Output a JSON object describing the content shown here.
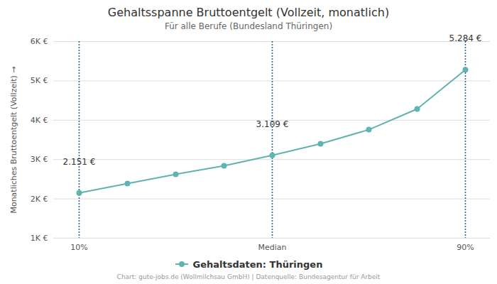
{
  "chart_data": {
    "type": "line",
    "title": "Gehaltsspanne Bruttoentgelt (Vollzeit, monatlich)",
    "subtitle": "Für alle Berufe (Bundesland Thüringen)",
    "ylabel": "Monatliches Bruttoentgelt (Vollzeit)",
    "caption": "Chart: gute-jobs.de (Wollmilchsau GmbH) | Datenquelle: Bundesagentur für Arbeit",
    "categories": [
      "10%",
      null,
      null,
      null,
      "Median",
      null,
      null,
      null,
      "90%"
    ],
    "series": [
      {
        "name": "Gehaltsdaten: Thüringen",
        "color": "#5fb3b0",
        "marker": "circle",
        "line_style": "solid",
        "values": [
          2151,
          2390,
          2625,
          2840,
          3109,
          3400,
          3760,
          4285,
          5284
        ],
        "value_labels": [
          "2.151 €",
          null,
          null,
          null,
          "3.109 €",
          null,
          null,
          null,
          "5.284 €"
        ]
      }
    ],
    "ylim": [
      1000,
      6000
    ],
    "yticks": [
      {
        "value": 1000,
        "label": "1K €"
      },
      {
        "value": 2000,
        "label": "2K €"
      },
      {
        "value": 3000,
        "label": "3K €"
      },
      {
        "value": 4000,
        "label": "4K €"
      },
      {
        "value": 5000,
        "label": "5K €"
      },
      {
        "value": 6000,
        "label": "6K €"
      }
    ],
    "grid": true,
    "data_labels": true,
    "legend": "bottom"
  }
}
